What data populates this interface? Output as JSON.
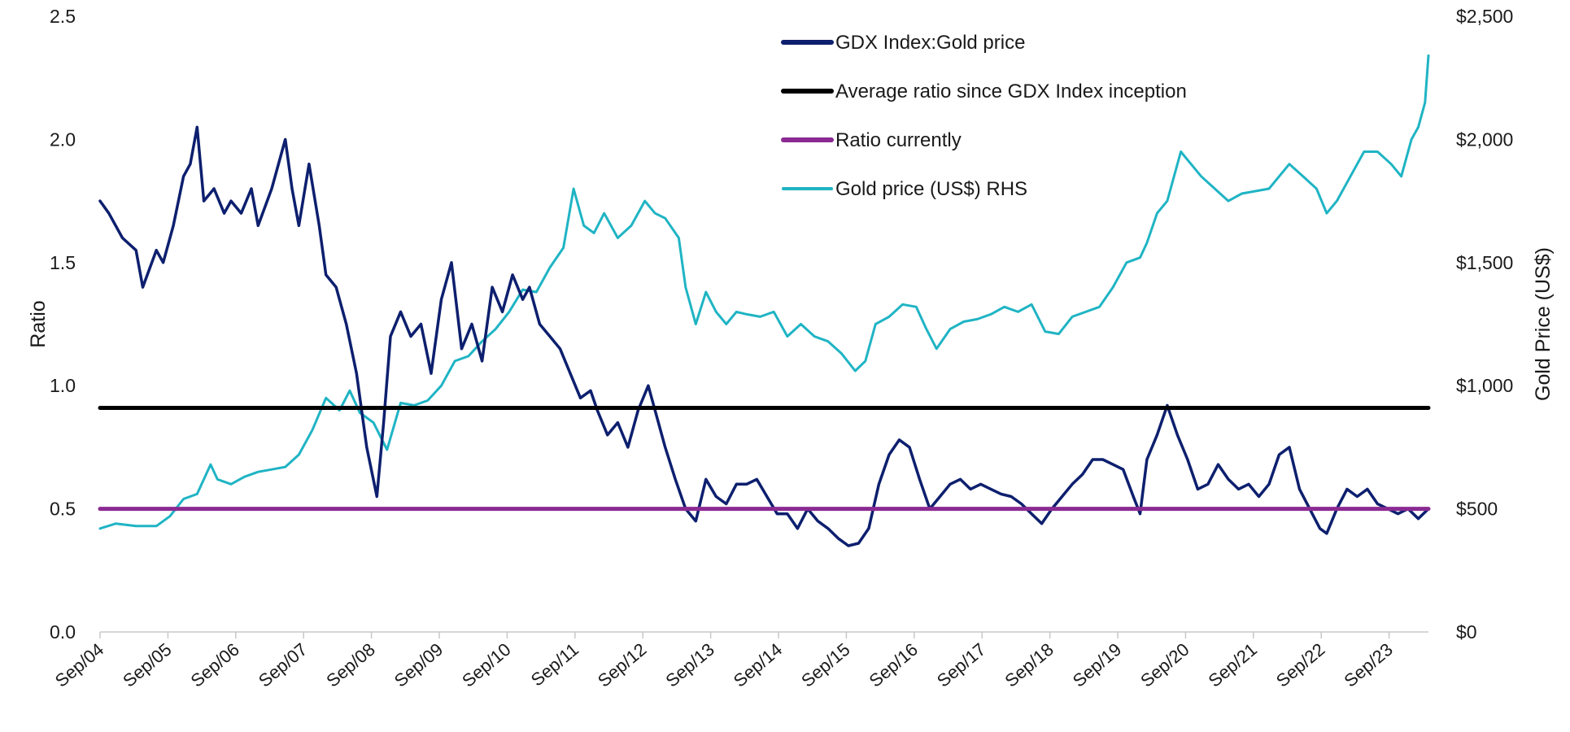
{
  "chart_data": {
    "type": "line",
    "title": "",
    "x_tick_labels": [
      "Sep/04",
      "Sep/05",
      "Sep/06",
      "Sep/07",
      "Sep/08",
      "Sep/09",
      "Sep/10",
      "Sep/11",
      "Sep/12",
      "Sep/13",
      "Sep/14",
      "Sep/15",
      "Sep/16",
      "Sep/17",
      "Sep/18",
      "Sep/19",
      "Sep/20",
      "Sep/21",
      "Sep/22",
      "Sep/23"
    ],
    "x_range": [
      2004.67,
      2024.25
    ],
    "left_axis": {
      "label": "Ratio",
      "range": [
        0,
        2.5
      ],
      "ticks": [
        "0.0",
        "0.5",
        "1.0",
        "1.5",
        "2.0",
        "2.5"
      ],
      "tick_values": [
        0,
        0.5,
        1.0,
        1.5,
        2.0,
        2.5
      ]
    },
    "right_axis": {
      "label": "Gold Price (US$)",
      "range": [
        0,
        2500
      ],
      "ticks": [
        "$0",
        "$500",
        "$1,000",
        "$1,500",
        "$2,000",
        "$2,500"
      ],
      "tick_values": [
        0,
        500,
        1000,
        1500,
        2000,
        2500
      ]
    },
    "legend": [
      {
        "name": "GDX Index:Gold price",
        "color": "#0d1f6e"
      },
      {
        "name": "Average ratio since GDX Index inception",
        "color": "#000000"
      },
      {
        "name": "Ratio currently",
        "color": "#8b2a92"
      },
      {
        "name": "Gold price (US$) RHS",
        "color": "#1fb4c4"
      }
    ],
    "series": [
      {
        "name": "GDX Index:Gold price",
        "axis": "left",
        "color": "#0d1f6e",
        "x": [
          2004.67,
          2004.8,
          2005.0,
          2005.2,
          2005.3,
          2005.5,
          2005.6,
          2005.75,
          2005.9,
          2006.0,
          2006.1,
          2006.2,
          2006.35,
          2006.5,
          2006.6,
          2006.75,
          2006.9,
          2007.0,
          2007.2,
          2007.4,
          2007.5,
          2007.6,
          2007.75,
          2007.9,
          2008.0,
          2008.15,
          2008.3,
          2008.45,
          2008.6,
          2008.75,
          2008.85,
          2008.95,
          2009.1,
          2009.25,
          2009.4,
          2009.55,
          2009.7,
          2009.85,
          2010.0,
          2010.15,
          2010.3,
          2010.45,
          2010.6,
          2010.75,
          2010.9,
          2011.0,
          2011.15,
          2011.3,
          2011.45,
          2011.6,
          2011.75,
          2011.9,
          2012.0,
          2012.15,
          2012.3,
          2012.45,
          2012.6,
          2012.75,
          2012.9,
          2013.0,
          2013.15,
          2013.3,
          2013.45,
          2013.6,
          2013.75,
          2013.9,
          2014.05,
          2014.2,
          2014.35,
          2014.5,
          2014.65,
          2014.8,
          2014.95,
          2015.1,
          2015.25,
          2015.4,
          2015.55,
          2015.7,
          2015.85,
          2016.0,
          2016.15,
          2016.3,
          2016.45,
          2016.6,
          2016.75,
          2016.9,
          2017.05,
          2017.2,
          2017.35,
          2017.5,
          2017.65,
          2017.8,
          2017.95,
          2018.1,
          2018.25,
          2018.4,
          2018.55,
          2018.7,
          2018.85,
          2019.0,
          2019.15,
          2019.3,
          2019.45,
          2019.6,
          2019.75,
          2019.9,
          2020.0,
          2020.1,
          2020.25,
          2020.4,
          2020.55,
          2020.7,
          2020.85,
          2021.0,
          2021.15,
          2021.3,
          2021.45,
          2021.6,
          2021.75,
          2021.9,
          2022.05,
          2022.2,
          2022.35,
          2022.5,
          2022.65,
          2022.75,
          2022.9,
          2023.05,
          2023.2,
          2023.35,
          2023.5,
          2023.65,
          2023.8,
          2023.95,
          2024.1,
          2024.25
        ],
        "values": [
          1.75,
          1.7,
          1.6,
          1.55,
          1.4,
          1.55,
          1.5,
          1.65,
          1.85,
          1.9,
          2.05,
          1.75,
          1.8,
          1.7,
          1.75,
          1.7,
          1.8,
          1.65,
          1.8,
          2.0,
          1.8,
          1.65,
          1.9,
          1.65,
          1.45,
          1.4,
          1.25,
          1.05,
          0.75,
          0.55,
          0.85,
          1.2,
          1.3,
          1.2,
          1.25,
          1.05,
          1.35,
          1.5,
          1.15,
          1.25,
          1.1,
          1.4,
          1.3,
          1.45,
          1.35,
          1.4,
          1.25,
          1.2,
          1.15,
          1.05,
          0.95,
          0.98,
          0.9,
          0.8,
          0.85,
          0.75,
          0.9,
          1.0,
          0.85,
          0.75,
          0.62,
          0.5,
          0.45,
          0.62,
          0.55,
          0.52,
          0.6,
          0.6,
          0.62,
          0.55,
          0.48,
          0.48,
          0.42,
          0.5,
          0.45,
          0.42,
          0.38,
          0.35,
          0.36,
          0.42,
          0.6,
          0.72,
          0.78,
          0.75,
          0.62,
          0.5,
          0.55,
          0.6,
          0.62,
          0.58,
          0.6,
          0.58,
          0.56,
          0.55,
          0.52,
          0.48,
          0.44,
          0.5,
          0.55,
          0.6,
          0.64,
          0.7,
          0.7,
          0.68,
          0.66,
          0.55,
          0.48,
          0.7,
          0.8,
          0.92,
          0.8,
          0.7,
          0.58,
          0.6,
          0.68,
          0.62,
          0.58,
          0.6,
          0.55,
          0.6,
          0.72,
          0.75,
          0.58,
          0.5,
          0.42,
          0.4,
          0.5,
          0.58,
          0.55,
          0.58,
          0.52,
          0.5,
          0.48,
          0.5,
          0.46,
          0.5
        ]
      },
      {
        "name": "Average ratio since GDX Index inception",
        "axis": "left",
        "color": "#000000",
        "x": [
          2004.67,
          2024.25
        ],
        "values": [
          0.91,
          0.91
        ]
      },
      {
        "name": "Ratio currently",
        "axis": "left",
        "color": "#8b2a92",
        "x": [
          2004.67,
          2024.25
        ],
        "values": [
          0.5,
          0.5
        ]
      },
      {
        "name": "Gold price (US$) RHS",
        "axis": "right",
        "color": "#1fb4c4",
        "x": [
          2004.67,
          2004.9,
          2005.2,
          2005.5,
          2005.7,
          2005.9,
          2006.1,
          2006.3,
          2006.4,
          2006.6,
          2006.8,
          2007.0,
          2007.2,
          2007.4,
          2007.6,
          2007.8,
          2008.0,
          2008.2,
          2008.35,
          2008.5,
          2008.7,
          2008.9,
          2009.1,
          2009.3,
          2009.5,
          2009.7,
          2009.9,
          2010.1,
          2010.3,
          2010.5,
          2010.7,
          2010.9,
          2011.1,
          2011.3,
          2011.5,
          2011.65,
          2011.8,
          2011.95,
          2012.1,
          2012.3,
          2012.5,
          2012.7,
          2012.85,
          2013.0,
          2013.2,
          2013.3,
          2013.45,
          2013.6,
          2013.75,
          2013.9,
          2014.05,
          2014.2,
          2014.4,
          2014.6,
          2014.8,
          2015.0,
          2015.2,
          2015.4,
          2015.6,
          2015.8,
          2015.95,
          2016.1,
          2016.3,
          2016.5,
          2016.7,
          2016.85,
          2017.0,
          2017.2,
          2017.4,
          2017.6,
          2017.8,
          2018.0,
          2018.2,
          2018.4,
          2018.6,
          2018.8,
          2019.0,
          2019.2,
          2019.4,
          2019.6,
          2019.8,
          2020.0,
          2020.1,
          2020.25,
          2020.4,
          2020.6,
          2020.75,
          2020.9,
          2021.1,
          2021.3,
          2021.5,
          2021.7,
          2021.9,
          2022.05,
          2022.2,
          2022.4,
          2022.6,
          2022.75,
          2022.9,
          2023.1,
          2023.3,
          2023.5,
          2023.7,
          2023.85,
          2024.0,
          2024.1,
          2024.2,
          2024.25
        ],
        "values": [
          420,
          440,
          430,
          430,
          470,
          540,
          560,
          680,
          620,
          600,
          630,
          650,
          660,
          670,
          720,
          820,
          950,
          900,
          980,
          890,
          850,
          740,
          930,
          920,
          940,
          1000,
          1100,
          1120,
          1180,
          1230,
          1300,
          1390,
          1380,
          1480,
          1560,
          1800,
          1650,
          1620,
          1700,
          1600,
          1650,
          1750,
          1700,
          1680,
          1600,
          1400,
          1250,
          1380,
          1300,
          1250,
          1300,
          1290,
          1280,
          1300,
          1200,
          1250,
          1200,
          1180,
          1130,
          1060,
          1100,
          1250,
          1280,
          1330,
          1320,
          1230,
          1150,
          1230,
          1260,
          1270,
          1290,
          1320,
          1300,
          1330,
          1220,
          1210,
          1280,
          1300,
          1320,
          1400,
          1500,
          1520,
          1580,
          1700,
          1750,
          1950,
          1900,
          1850,
          1800,
          1750,
          1780,
          1790,
          1800,
          1850,
          1900,
          1850,
          1800,
          1700,
          1750,
          1850,
          1950,
          1950,
          1900,
          1850,
          2000,
          2050,
          2150,
          2340
        ]
      }
    ]
  }
}
